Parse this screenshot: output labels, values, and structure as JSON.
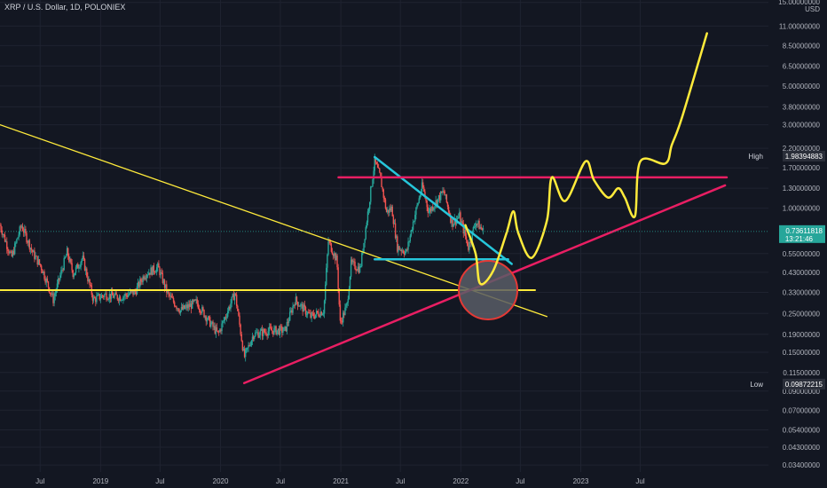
{
  "header": {
    "symbol_title": "XRP / U.S. Dollar, 1D, POLONIEX"
  },
  "colors": {
    "background": "#131722",
    "grid": "#1f2330",
    "candle_up": "#26a69a",
    "candle_down": "#ef5350",
    "yellow": "#ffeb3b",
    "cyan": "#26c6da",
    "magenta": "#e91e63",
    "circle_fill": "#595d66",
    "circle_stroke": "#e53935",
    "price_tag": "#26a69a"
  },
  "price_axis": {
    "unit": "USD",
    "ticks": [
      {
        "label": "15.00000000",
        "value": 15.0
      },
      {
        "label": "11.00000000",
        "value": 11.0
      },
      {
        "label": "8.50000000",
        "value": 8.5
      },
      {
        "label": "6.50000000",
        "value": 6.5
      },
      {
        "label": "5.00000000",
        "value": 5.0
      },
      {
        "label": "3.80000000",
        "value": 3.8
      },
      {
        "label": "3.00000000",
        "value": 3.0
      },
      {
        "label": "2.20000000",
        "value": 2.2
      },
      {
        "label": "1.70000000",
        "value": 1.7
      },
      {
        "label": "1.30000000",
        "value": 1.3
      },
      {
        "label": "1.00000000",
        "value": 1.0
      },
      {
        "label": "0.55000000",
        "value": 0.55
      },
      {
        "label": "0.43000000",
        "value": 0.43
      },
      {
        "label": "0.33000000",
        "value": 0.33
      },
      {
        "label": "0.25000000",
        "value": 0.25
      },
      {
        "label": "0.19000000",
        "value": 0.19
      },
      {
        "label": "0.15000000",
        "value": 0.15
      },
      {
        "label": "0.11500000",
        "value": 0.115
      },
      {
        "label": "0.09000000",
        "value": 0.09
      },
      {
        "label": "0.07000000",
        "value": 0.07
      },
      {
        "label": "0.05400000",
        "value": 0.054
      },
      {
        "label": "0.04300000",
        "value": 0.043
      },
      {
        "label": "0.03400000",
        "value": 0.034
      }
    ],
    "high": {
      "label": "High",
      "value_text": "1.98394883",
      "value": 1.98394883
    },
    "low": {
      "label": "Low",
      "value_text": "0.09872215",
      "value": 0.09872215
    },
    "last": {
      "value_text": "0.73611818",
      "countdown": "13:21:46",
      "value": 0.73611818
    }
  },
  "time_axis": {
    "ticks": [
      {
        "label": "Jul",
        "date": "2018-07-01"
      },
      {
        "label": "2019",
        "date": "2019-01-01"
      },
      {
        "label": "Jul",
        "date": "2019-07-01"
      },
      {
        "label": "2020",
        "date": "2020-01-01"
      },
      {
        "label": "Jul",
        "date": "2020-07-01"
      },
      {
        "label": "2021",
        "date": "2021-01-01"
      },
      {
        "label": "Jul",
        "date": "2021-07-01"
      },
      {
        "label": "2022",
        "date": "2022-01-01"
      },
      {
        "label": "Jul",
        "date": "2022-07-01"
      },
      {
        "label": "2023",
        "date": "2023-01-01"
      },
      {
        "label": "Jul",
        "date": "2023-07-01"
      }
    ]
  },
  "chart_data": {
    "type": "candlestick",
    "title": "XRP / U.S. Dollar, 1D, POLONIEX",
    "scale": "log",
    "x_range": [
      "2018-03-01",
      "2024-07-25"
    ],
    "y_range": [
      0.031,
      15.5
    ],
    "grid": true,
    "price_path_approx": [
      {
        "date": "2018-03-01",
        "close": 0.8
      },
      {
        "date": "2018-04-05",
        "close": 0.52
      },
      {
        "date": "2018-05-05",
        "close": 0.8
      },
      {
        "date": "2018-06-10",
        "close": 0.55
      },
      {
        "date": "2018-07-05",
        "close": 0.46
      },
      {
        "date": "2018-08-10",
        "close": 0.3
      },
      {
        "date": "2018-09-21",
        "close": 0.56
      },
      {
        "date": "2018-10-10",
        "close": 0.42
      },
      {
        "date": "2018-11-07",
        "close": 0.52
      },
      {
        "date": "2018-12-10",
        "close": 0.3
      },
      {
        "date": "2019-01-15",
        "close": 0.32
      },
      {
        "date": "2019-03-01",
        "close": 0.31
      },
      {
        "date": "2019-04-15",
        "close": 0.33
      },
      {
        "date": "2019-05-15",
        "close": 0.42
      },
      {
        "date": "2019-06-25",
        "close": 0.46
      },
      {
        "date": "2019-07-25",
        "close": 0.32
      },
      {
        "date": "2019-09-01",
        "close": 0.26
      },
      {
        "date": "2019-10-20",
        "close": 0.29
      },
      {
        "date": "2019-12-01",
        "close": 0.22
      },
      {
        "date": "2019-12-25",
        "close": 0.19
      },
      {
        "date": "2020-02-14",
        "close": 0.33
      },
      {
        "date": "2020-03-13",
        "close": 0.14
      },
      {
        "date": "2020-04-10",
        "close": 0.19
      },
      {
        "date": "2020-06-01",
        "close": 0.2
      },
      {
        "date": "2020-07-15",
        "close": 0.2
      },
      {
        "date": "2020-08-15",
        "close": 0.3
      },
      {
        "date": "2020-10-01",
        "close": 0.24
      },
      {
        "date": "2020-11-10",
        "close": 0.26
      },
      {
        "date": "2020-11-24",
        "close": 0.65
      },
      {
        "date": "2020-12-20",
        "close": 0.5
      },
      {
        "date": "2020-12-30",
        "close": 0.22
      },
      {
        "date": "2021-01-20",
        "close": 0.28
      },
      {
        "date": "2021-02-01",
        "close": 0.48
      },
      {
        "date": "2021-03-01",
        "close": 0.45
      },
      {
        "date": "2021-04-14",
        "close": 1.85
      },
      {
        "date": "2021-05-01",
        "close": 1.5
      },
      {
        "date": "2021-05-20",
        "close": 0.95
      },
      {
        "date": "2021-06-05",
        "close": 1.0
      },
      {
        "date": "2021-06-22",
        "close": 0.6
      },
      {
        "date": "2021-07-20",
        "close": 0.56
      },
      {
        "date": "2021-08-10",
        "close": 0.85
      },
      {
        "date": "2021-09-06",
        "close": 1.35
      },
      {
        "date": "2021-09-25",
        "close": 0.95
      },
      {
        "date": "2021-11-10",
        "close": 1.25
      },
      {
        "date": "2021-12-05",
        "close": 0.82
      },
      {
        "date": "2021-12-28",
        "close": 0.9
      },
      {
        "date": "2022-01-24",
        "close": 0.6
      },
      {
        "date": "2022-02-15",
        "close": 0.84
      },
      {
        "date": "2022-03-10",
        "close": 0.74
      }
    ]
  },
  "drawings": {
    "yellow_descending_line": [
      {
        "date": "2018-03-01",
        "price": 3.0
      },
      {
        "date": "2022-09-20",
        "price": 0.24
      }
    ],
    "yellow_horizontal_support": {
      "price": 0.34,
      "from": "2018-03-01",
      "to": "2022-08-15"
    },
    "cyan_descending_line": [
      {
        "date": "2021-04-14",
        "price": 1.96
      },
      {
        "date": "2022-06-05",
        "price": 0.48
      }
    ],
    "cyan_horizontal_support": {
      "price": 0.51,
      "from": "2021-04-14",
      "to": "2022-05-25"
    },
    "magenta_horizontal_resistance": {
      "price": 1.5,
      "from": "2020-12-25",
      "to": "2024-03-20"
    },
    "magenta_ascending_line": [
      {
        "date": "2020-03-13",
        "price": 0.1
      },
      {
        "date": "2024-03-15",
        "price": 1.35
      }
    ],
    "highlight_circle": {
      "date": "2022-03-25",
      "price": 0.34
    },
    "projection_path": [
      {
        "date": "2022-01-15",
        "price": 0.8
      },
      {
        "date": "2022-02-15",
        "price": 0.55
      },
      {
        "date": "2022-03-01",
        "price": 0.37
      },
      {
        "date": "2022-04-10",
        "price": 0.44
      },
      {
        "date": "2022-05-20",
        "price": 0.72
      },
      {
        "date": "2022-06-10",
        "price": 0.96
      },
      {
        "date": "2022-06-25",
        "price": 0.72
      },
      {
        "date": "2022-08-05",
        "price": 0.52
      },
      {
        "date": "2022-09-20",
        "price": 0.85
      },
      {
        "date": "2022-10-05",
        "price": 1.5
      },
      {
        "date": "2022-11-15",
        "price": 1.1
      },
      {
        "date": "2023-01-15",
        "price": 1.85
      },
      {
        "date": "2023-02-10",
        "price": 1.45
      },
      {
        "date": "2023-03-25",
        "price": 1.15
      },
      {
        "date": "2023-04-25",
        "price": 1.3
      },
      {
        "date": "2023-05-15",
        "price": 1.15
      },
      {
        "date": "2023-06-15",
        "price": 0.9
      },
      {
        "date": "2023-07-01",
        "price": 1.85
      },
      {
        "date": "2023-09-15",
        "price": 1.8
      },
      {
        "date": "2023-10-05",
        "price": 2.3
      },
      {
        "date": "2023-11-05",
        "price": 3.3
      },
      {
        "date": "2024-01-20",
        "price": 10.0
      }
    ]
  }
}
